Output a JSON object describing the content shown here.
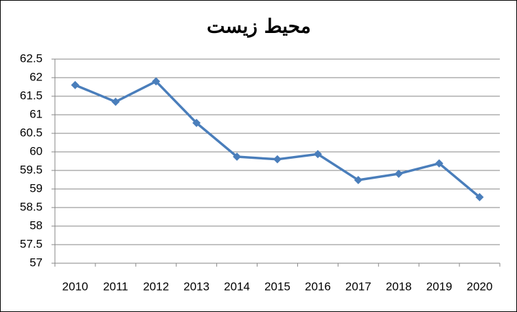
{
  "chart_data": {
    "type": "line",
    "title": "محیط زیست",
    "categories": [
      "2010",
      "2011",
      "2012",
      "2013",
      "2014",
      "2015",
      "2016",
      "2017",
      "2018",
      "2019",
      "2020"
    ],
    "values": [
      61.8,
      61.35,
      61.9,
      60.78,
      59.87,
      59.8,
      59.94,
      59.24,
      59.41,
      59.69,
      58.78
    ],
    "color": "#4a7ebb",
    "ylim": [
      57,
      62.5
    ],
    "yticks": [
      57,
      57.5,
      58,
      58.5,
      59,
      59.5,
      60,
      60.5,
      61,
      61.5,
      62,
      62.5
    ],
    "grid": true
  }
}
